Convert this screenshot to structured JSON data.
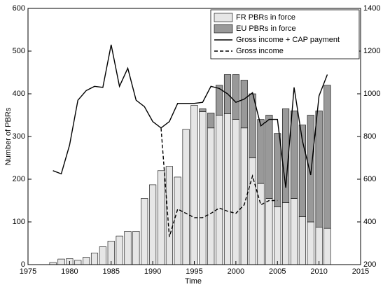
{
  "chart_data": {
    "type": "bar",
    "xlabel": "Time",
    "ylabel": "Number of PBRs",
    "x": [
      1978,
      1979,
      1980,
      1981,
      1982,
      1983,
      1984,
      1985,
      1986,
      1987,
      1988,
      1989,
      1990,
      1991,
      1992,
      1993,
      1994,
      1995,
      1996,
      1997,
      1998,
      1999,
      2000,
      2001,
      2002,
      2003,
      2004,
      2005,
      2006,
      2007,
      2008,
      2009,
      2010,
      2011
    ],
    "xlim": [
      1975,
      2015
    ],
    "xticks": [
      1975,
      1980,
      1985,
      1990,
      1995,
      2000,
      2005,
      2010,
      2015
    ],
    "ylim": [
      0,
      600
    ],
    "yticks": [
      0,
      100,
      200,
      300,
      400,
      500,
      600
    ],
    "y2lim": [
      200,
      1400
    ],
    "y2ticks": [
      200,
      400,
      600,
      800,
      1000,
      1200,
      1400
    ],
    "legend": "upper right",
    "series": [
      {
        "name": "FR PBRs in force",
        "style": "bar",
        "color": "#e6e6e6",
        "values": [
          5,
          13,
          14,
          10,
          17,
          27,
          42,
          55,
          67,
          78,
          78,
          155,
          187,
          220,
          230,
          205,
          317,
          373,
          358,
          320,
          350,
          353,
          340,
          320,
          250,
          190,
          155,
          135,
          145,
          155,
          112,
          100,
          88,
          85
        ]
      },
      {
        "name": "EU PBRs in force",
        "style": "bar",
        "color": "#999999",
        "values": [
          0,
          0,
          0,
          0,
          0,
          0,
          0,
          0,
          0,
          0,
          0,
          0,
          0,
          0,
          0,
          0,
          0,
          0,
          7,
          35,
          70,
          92,
          105,
          112,
          150,
          150,
          195,
          172,
          220,
          205,
          215,
          250,
          272,
          335
        ]
      },
      {
        "name": "Gross income + CAP payment",
        "style": "solid",
        "axis": "y2",
        "color": "#000000",
        "values": [
          640,
          625,
          760,
          970,
          1015,
          1035,
          1030,
          1230,
          1035,
          1120,
          970,
          940,
          870,
          840,
          870,
          955,
          955,
          955,
          960,
          1035,
          1025,
          1000,
          960,
          975,
          1005,
          850,
          880,
          880,
          560,
          1030,
          780,
          620,
          990,
          1090
        ]
      },
      {
        "name": "Gross income",
        "style": "dashed",
        "axis": "y2",
        "color": "#000000",
        "values": [
          null,
          null,
          null,
          null,
          null,
          null,
          null,
          null,
          null,
          null,
          null,
          null,
          null,
          840,
          330,
          460,
          440,
          420,
          420,
          440,
          465,
          450,
          440,
          480,
          615,
          480,
          500,
          500,
          null,
          null,
          null,
          null,
          null,
          null
        ]
      }
    ]
  }
}
